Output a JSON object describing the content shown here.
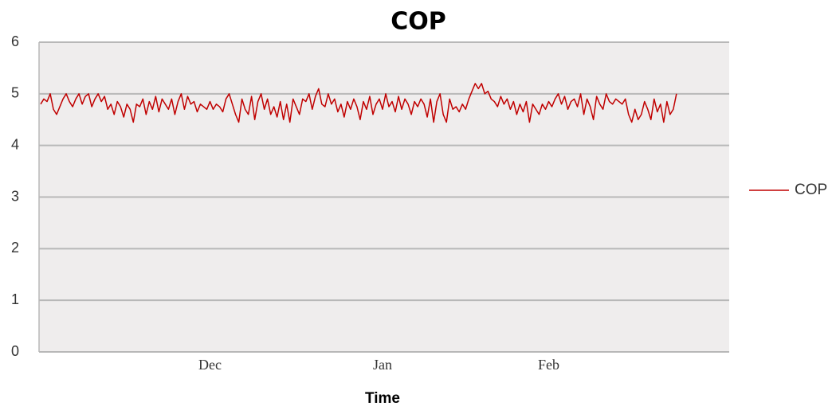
{
  "chart_data": {
    "type": "line",
    "title": "COP",
    "x_label": "Time",
    "categories": [
      null,
      null,
      null,
      null,
      null,
      null,
      null,
      null,
      null,
      null,
      null,
      null,
      null,
      null,
      null,
      null,
      null,
      null,
      null,
      null,
      null,
      null,
      null,
      null,
      null,
      null,
      null,
      null,
      null,
      null,
      null,
      null,
      null,
      null,
      null,
      null,
      null,
      null,
      null,
      null,
      null,
      null,
      null,
      null,
      null,
      null,
      null,
      null,
      null,
      null,
      null,
      null,
      null,
      "Dec",
      null,
      null,
      null,
      null,
      null,
      null,
      null,
      null,
      null,
      null,
      null,
      null,
      null,
      null,
      null,
      null,
      null,
      null,
      null,
      null,
      null,
      null,
      null,
      null,
      null,
      null,
      null,
      null,
      null,
      null,
      null,
      null,
      null,
      null,
      null,
      null,
      null,
      null,
      null,
      null,
      null,
      null,
      null,
      null,
      null,
      null,
      null,
      null,
      null,
      null,
      null,
      null,
      null,
      "Jan",
      null,
      null,
      null,
      null,
      null,
      null,
      null,
      null,
      null,
      null,
      null,
      null,
      null,
      null,
      null,
      null,
      null,
      null,
      null,
      null,
      null,
      null,
      null,
      null,
      null,
      null,
      null,
      null,
      null,
      null,
      null,
      null,
      null,
      null,
      null,
      null,
      null,
      null,
      null,
      null,
      null,
      null,
      null,
      null,
      null,
      null,
      null,
      null,
      null,
      null,
      null,
      "Feb",
      null,
      null,
      null,
      null,
      null,
      null,
      null,
      null,
      null,
      null,
      null,
      null,
      null,
      null,
      null,
      null,
      null,
      null,
      null,
      null,
      null,
      null,
      null,
      null,
      null,
      null,
      null,
      null,
      null,
      null,
      null,
      null,
      null,
      null,
      null,
      null,
      null,
      null,
      null,
      null,
      null,
      null,
      null,
      null,
      null,
      null,
      null,
      null,
      null,
      null,
      null,
      null,
      null,
      null,
      null,
      null
    ],
    "series": [
      {
        "name": "COP",
        "color": "#c00000",
        "values": [
          4.8,
          4.9,
          4.85,
          5.0,
          4.7,
          4.6,
          4.75,
          4.9,
          5.0,
          4.85,
          4.75,
          4.9,
          5.0,
          4.8,
          4.95,
          5.0,
          4.75,
          4.9,
          5.0,
          4.85,
          4.95,
          4.7,
          4.8,
          4.6,
          4.85,
          4.75,
          4.55,
          4.8,
          4.7,
          4.45,
          4.8,
          4.75,
          4.9,
          4.6,
          4.85,
          4.7,
          4.95,
          4.65,
          4.9,
          4.8,
          4.7,
          4.9,
          4.6,
          4.85,
          5.0,
          4.7,
          4.95,
          4.8,
          4.85,
          4.65,
          4.8,
          4.75,
          4.7,
          4.85,
          4.7,
          4.8,
          4.75,
          4.65,
          4.9,
          5.0,
          4.8,
          4.6,
          4.45,
          4.9,
          4.7,
          4.6,
          4.95,
          4.5,
          4.85,
          5.0,
          4.7,
          4.9,
          4.6,
          4.75,
          4.55,
          4.85,
          4.5,
          4.8,
          4.45,
          4.9,
          4.75,
          4.6,
          4.9,
          4.85,
          5.0,
          4.7,
          4.95,
          5.1,
          4.8,
          4.75,
          5.0,
          4.8,
          4.9,
          4.65,
          4.8,
          4.55,
          4.85,
          4.7,
          4.9,
          4.75,
          4.5,
          4.85,
          4.7,
          4.95,
          4.6,
          4.8,
          4.9,
          4.7,
          5.0,
          4.75,
          4.85,
          4.65,
          4.95,
          4.7,
          4.9,
          4.8,
          4.6,
          4.85,
          4.75,
          4.9,
          4.8,
          4.55,
          4.9,
          4.45,
          4.85,
          5.0,
          4.6,
          4.45,
          4.9,
          4.7,
          4.75,
          4.65,
          4.8,
          4.7,
          4.9,
          5.05,
          5.2,
          5.1,
          5.2,
          5.0,
          5.05,
          4.9,
          4.85,
          4.75,
          4.95,
          4.8,
          4.9,
          4.7,
          4.85,
          4.6,
          4.8,
          4.65,
          4.85,
          4.45,
          4.8,
          4.7,
          4.6,
          4.8,
          4.7,
          4.85,
          4.75,
          4.9,
          5.0,
          4.8,
          4.95,
          4.7,
          4.85,
          4.9,
          4.75,
          5.0,
          4.6,
          4.9,
          4.75,
          4.5,
          4.95,
          4.8,
          4.7,
          5.0,
          4.85,
          4.8,
          4.9,
          4.85,
          4.8,
          4.9,
          4.6,
          4.45,
          4.7,
          4.5,
          4.6,
          4.85,
          4.7,
          4.5,
          4.9,
          4.65,
          4.8,
          4.45,
          4.85,
          4.6,
          4.7,
          5.0,
          null,
          null,
          null,
          null,
          null,
          null,
          null,
          null,
          null,
          null,
          null,
          null,
          null,
          null,
          null,
          null
        ]
      }
    ],
    "ylim": [
      0,
      6
    ],
    "yticks": [
      0,
      1,
      2,
      3,
      4,
      5,
      6
    ],
    "grid": true,
    "legend": "right"
  }
}
